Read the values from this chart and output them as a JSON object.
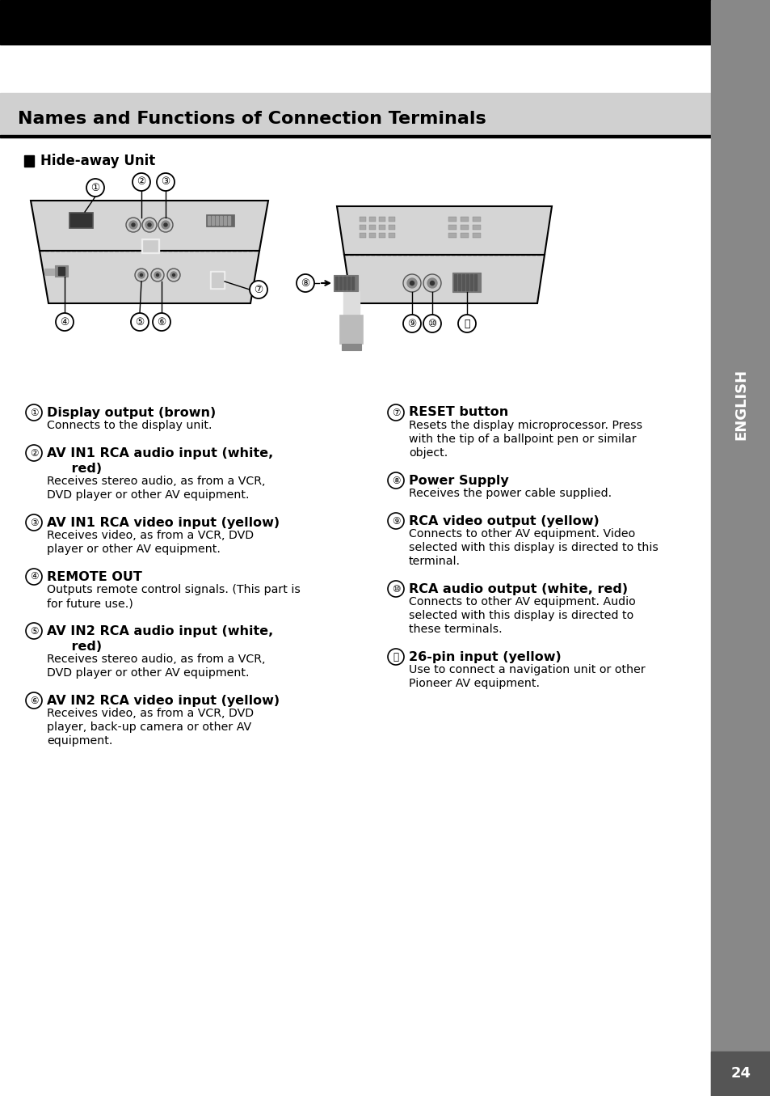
{
  "title": "Names and Functions of Connection Terminals",
  "background_color": "#ffffff",
  "page_number": "24",
  "sidebar_text": "ENGLISH",
  "left_items": [
    {
      "num": "①",
      "bold_lines": [
        "Display output (brown)"
      ],
      "normal_lines": [
        "Connects to the display unit."
      ]
    },
    {
      "num": "②",
      "bold_lines": [
        "AV IN1 RCA audio input (white,",
        "    red)"
      ],
      "normal_lines": [
        "Receives stereo audio, as from a VCR,",
        "DVD player or other AV equipment."
      ]
    },
    {
      "num": "③",
      "bold_lines": [
        "AV IN1 RCA video input (yellow)"
      ],
      "normal_lines": [
        "Receives video, as from a VCR, DVD",
        "player or other AV equipment."
      ]
    },
    {
      "num": "④",
      "bold_lines": [
        "REMOTE OUT"
      ],
      "normal_lines": [
        "Outputs remote control signals. (This part is",
        "for future use.)"
      ]
    },
    {
      "num": "⑤",
      "bold_lines": [
        "AV IN2 RCA audio input (white,",
        "    red)"
      ],
      "normal_lines": [
        "Receives stereo audio, as from a VCR,",
        "DVD player or other AV equipment."
      ]
    },
    {
      "num": "⑥",
      "bold_lines": [
        "AV IN2 RCA video input (yellow)"
      ],
      "normal_lines": [
        "Receives video, as from a VCR, DVD",
        "player, back-up camera or other AV",
        "equipment."
      ]
    }
  ],
  "right_items": [
    {
      "num": "⑦",
      "bold_lines": [
        "RESET button"
      ],
      "normal_lines": [
        "Resets the display microprocessor. Press",
        "with the tip of a ballpoint pen or similar",
        "object."
      ]
    },
    {
      "num": "⑧",
      "bold_lines": [
        "Power Supply"
      ],
      "normal_lines": [
        "Receives the power cable supplied."
      ]
    },
    {
      "num": "⑨",
      "bold_lines": [
        "RCA video output (yellow)"
      ],
      "normal_lines": [
        "Connects to other AV equipment. Video",
        "selected with this display is directed to this",
        "terminal."
      ]
    },
    {
      "num": "⑩",
      "bold_lines": [
        "RCA audio output (white, red)"
      ],
      "normal_lines": [
        "Connects to other AV equipment. Audio",
        "selected with this display is directed to",
        "these terminals."
      ]
    },
    {
      "num": "⑪",
      "bold_lines": [
        "26-pin input (yellow)"
      ],
      "normal_lines": [
        "Use to connect a navigation unit or other",
        "Pioneer AV equipment."
      ]
    }
  ]
}
